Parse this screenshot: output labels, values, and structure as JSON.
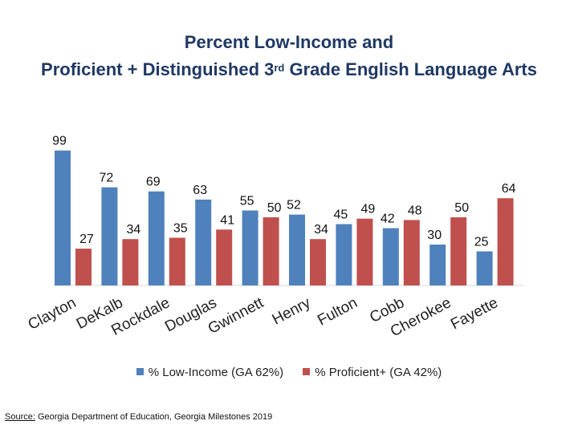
{
  "title": {
    "line1": "Percent Low-Income and",
    "line2_pre": "Proficient + Distinguished 3",
    "line2_sup": "rd",
    "line2_post": " Grade English Language Arts"
  },
  "chart_data": {
    "type": "bar",
    "categories": [
      "Clayton",
      "DeKalb",
      "Rockdale",
      "Douglas",
      "Gwinnett",
      "Henry",
      "Fulton",
      "Cobb",
      "Cherokee",
      "Fayette"
    ],
    "series": [
      {
        "name": "% Low-Income (GA 62%)",
        "color": "#4f81bd",
        "values": [
          99,
          72,
          69,
          63,
          55,
          52,
          45,
          42,
          30,
          25
        ]
      },
      {
        "name": "% Proficient+ (GA 42%)",
        "color": "#c0504d",
        "values": [
          27,
          34,
          35,
          41,
          50,
          34,
          49,
          48,
          50,
          64
        ]
      }
    ],
    "ylim": [
      0,
      100
    ],
    "grid": false,
    "legend": "bottom",
    "category_label_rotation": "diagonal"
  },
  "legend": {
    "low_income": "% Low-Income (GA 62%)",
    "proficient": "% Proficient+ (GA 42%)"
  },
  "source": {
    "label": "Source:",
    "text": " Georgia Department of Education, Georgia Milestones 2019"
  }
}
